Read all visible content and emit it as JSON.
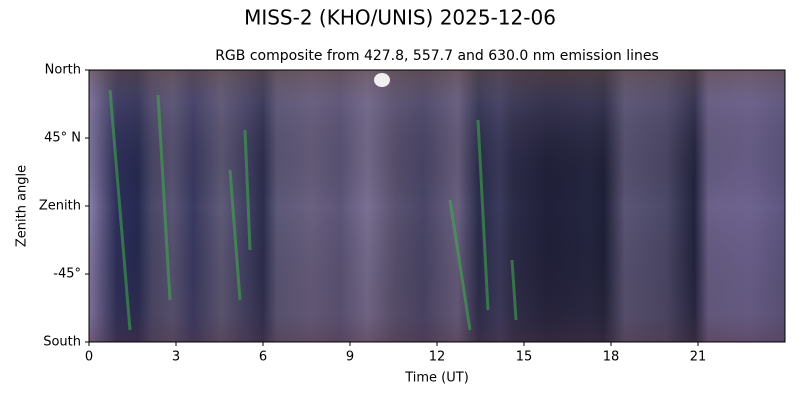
{
  "chart_data": {
    "type": "keogram",
    "title": "MISS-2 (KHO/UNIS) 2025-12-06",
    "subtitle": "RGB composite from 427.8, 557.7 and 630.0 nm emission lines",
    "x_label": "Time (UT)",
    "y_label": "Zenith angle",
    "xlim": [
      0,
      24
    ],
    "xticks": [
      0,
      3,
      6,
      9,
      12,
      15,
      18,
      21
    ],
    "ylim": [
      -90,
      90
    ],
    "yticks": [
      {
        "value": 90,
        "label": "North"
      },
      {
        "value": 45,
        "label": "45° N"
      },
      {
        "value": 0,
        "label": "Zenith"
      },
      {
        "value": -45,
        "label": "-45°"
      },
      {
        "value": -90,
        "label": "South"
      }
    ]
  }
}
